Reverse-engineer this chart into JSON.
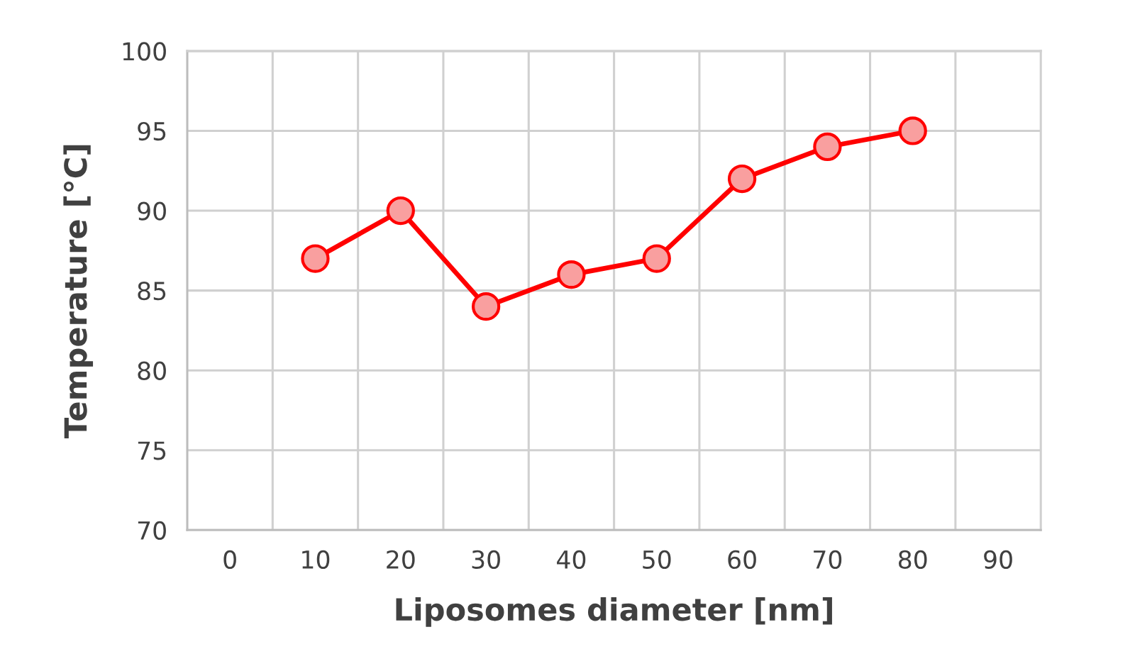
{
  "chart_data": {
    "type": "line",
    "xlabel": "Liposomes diameter [nm]",
    "ylabel": "Temperature [°C]",
    "categories": [
      "0",
      "10",
      "20",
      "30",
      "40",
      "50",
      "60",
      "70",
      "80",
      "90"
    ],
    "series": [
      {
        "color": "#ff0000",
        "values": [
          null,
          87,
          90,
          84,
          86,
          87,
          92,
          94,
          95,
          null
        ]
      }
    ],
    "ylim": [
      70,
      100
    ],
    "yticks": [
      70,
      75,
      80,
      85,
      90,
      95,
      100
    ],
    "grid": true,
    "marker": "circle",
    "line_style": "solid",
    "legend": false
  }
}
